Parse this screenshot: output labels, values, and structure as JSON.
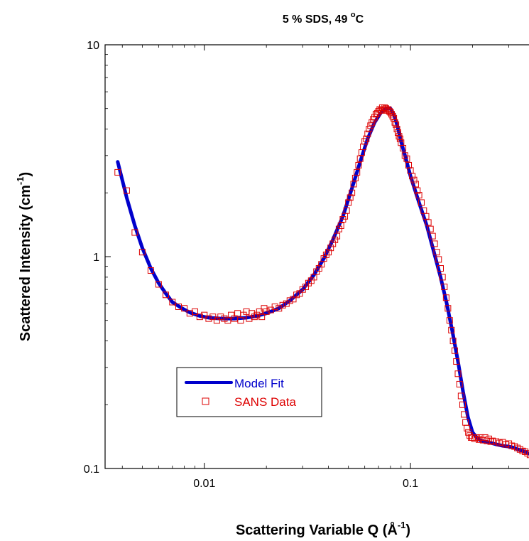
{
  "chart_data": {
    "type": "scatter",
    "title_parts": {
      "main": "5 % SDS, 49 ",
      "sup": "o",
      "tail": "C"
    },
    "xlabel_parts": {
      "main": "Scattering Variable Q (Å",
      "sup": "-1",
      "tail": ")"
    },
    "ylabel_parts": {
      "main": "Scattered Intensity (cm",
      "sup": "-1",
      "tail": ")"
    },
    "x_scale": "log",
    "y_scale": "log",
    "xlim": [
      0.0033,
      0.42
    ],
    "ylim": [
      0.1,
      10
    ],
    "x_ticks": [
      {
        "value": 0.01,
        "label": "0.01"
      },
      {
        "value": 0.1,
        "label": "0.1"
      }
    ],
    "y_ticks": [
      {
        "value": 0.1,
        "label": "0.1"
      },
      {
        "value": 1,
        "label": "1"
      },
      {
        "value": 10,
        "label": "10"
      }
    ],
    "grid": false,
    "legend_position": "lower-left",
    "series": [
      {
        "name": "Model Fit",
        "kind": "line",
        "color": "#0000cc",
        "x": [
          0.0038,
          0.0042,
          0.0046,
          0.005,
          0.0055,
          0.006,
          0.0065,
          0.007,
          0.0078,
          0.0085,
          0.0095,
          0.0105,
          0.012,
          0.014,
          0.016,
          0.018,
          0.02,
          0.023,
          0.026,
          0.03,
          0.034,
          0.038,
          0.042,
          0.047,
          0.052,
          0.057,
          0.062,
          0.067,
          0.072,
          0.076,
          0.08,
          0.083,
          0.086,
          0.09,
          0.095,
          0.1,
          0.11,
          0.12,
          0.13,
          0.14,
          0.15,
          0.16,
          0.17,
          0.18,
          0.19,
          0.2,
          0.21,
          0.22,
          0.24,
          0.26,
          0.28,
          0.3,
          0.32,
          0.34,
          0.36,
          0.38,
          0.4
        ],
        "y": [
          2.8,
          1.9,
          1.4,
          1.1,
          0.88,
          0.75,
          0.67,
          0.61,
          0.57,
          0.545,
          0.525,
          0.515,
          0.51,
          0.51,
          0.515,
          0.525,
          0.54,
          0.57,
          0.62,
          0.7,
          0.82,
          0.98,
          1.2,
          1.55,
          2.1,
          2.8,
          3.6,
          4.3,
          4.8,
          5.0,
          5.0,
          4.7,
          4.2,
          3.5,
          2.9,
          2.4,
          1.8,
          1.4,
          1.05,
          0.8,
          0.6,
          0.44,
          0.32,
          0.23,
          0.175,
          0.148,
          0.14,
          0.135,
          0.133,
          0.13,
          0.128,
          0.127,
          0.125,
          0.122,
          0.12,
          0.117,
          0.114
        ]
      },
      {
        "name": "SANS Data",
        "kind": "scatter",
        "color": "#dd0000",
        "x": [
          0.0038,
          0.0042,
          0.0046,
          0.005,
          0.0055,
          0.006,
          0.0065,
          0.007,
          0.0075,
          0.008,
          0.0085,
          0.009,
          0.0095,
          0.01,
          0.0105,
          0.011,
          0.0115,
          0.012,
          0.0125,
          0.013,
          0.0135,
          0.014,
          0.0145,
          0.015,
          0.0155,
          0.016,
          0.0165,
          0.017,
          0.0175,
          0.018,
          0.0185,
          0.019,
          0.0195,
          0.02,
          0.021,
          0.022,
          0.023,
          0.024,
          0.025,
          0.026,
          0.027,
          0.028,
          0.029,
          0.03,
          0.031,
          0.032,
          0.033,
          0.034,
          0.035,
          0.036,
          0.037,
          0.038,
          0.039,
          0.04,
          0.041,
          0.042,
          0.043,
          0.044,
          0.045,
          0.046,
          0.047,
          0.048,
          0.049,
          0.05,
          0.051,
          0.052,
          0.053,
          0.054,
          0.055,
          0.056,
          0.057,
          0.058,
          0.059,
          0.06,
          0.061,
          0.062,
          0.063,
          0.064,
          0.065,
          0.066,
          0.067,
          0.068,
          0.069,
          0.07,
          0.071,
          0.072,
          0.073,
          0.074,
          0.075,
          0.076,
          0.077,
          0.078,
          0.079,
          0.08,
          0.081,
          0.082,
          0.083,
          0.084,
          0.085,
          0.086,
          0.087,
          0.088,
          0.089,
          0.09,
          0.092,
          0.094,
          0.096,
          0.098,
          0.1,
          0.102,
          0.104,
          0.106,
          0.108,
          0.11,
          0.113,
          0.116,
          0.119,
          0.122,
          0.125,
          0.128,
          0.131,
          0.134,
          0.137,
          0.14,
          0.143,
          0.146,
          0.149,
          0.152,
          0.155,
          0.158,
          0.161,
          0.164,
          0.167,
          0.17,
          0.173,
          0.176,
          0.179,
          0.182,
          0.185,
          0.188,
          0.191,
          0.194,
          0.197,
          0.2,
          0.205,
          0.21,
          0.215,
          0.22,
          0.225,
          0.23,
          0.235,
          0.24,
          0.245,
          0.25,
          0.26,
          0.27,
          0.28,
          0.29,
          0.3,
          0.31,
          0.32,
          0.33,
          0.34,
          0.35,
          0.36,
          0.37,
          0.38,
          0.39,
          0.4
        ],
        "y": [
          2.5,
          2.05,
          1.3,
          1.05,
          0.86,
          0.74,
          0.66,
          0.61,
          0.58,
          0.57,
          0.54,
          0.55,
          0.52,
          0.53,
          0.51,
          0.52,
          0.5,
          0.52,
          0.51,
          0.5,
          0.53,
          0.51,
          0.54,
          0.5,
          0.53,
          0.55,
          0.51,
          0.54,
          0.52,
          0.53,
          0.55,
          0.52,
          0.57,
          0.55,
          0.56,
          0.58,
          0.57,
          0.59,
          0.6,
          0.62,
          0.63,
          0.66,
          0.67,
          0.7,
          0.72,
          0.75,
          0.77,
          0.8,
          0.85,
          0.88,
          0.92,
          0.98,
          1.02,
          1.05,
          1.1,
          1.15,
          1.2,
          1.25,
          1.35,
          1.4,
          1.5,
          1.55,
          1.65,
          1.8,
          1.9,
          2.0,
          2.2,
          2.35,
          2.5,
          2.7,
          2.9,
          3.1,
          3.3,
          3.5,
          3.6,
          3.8,
          4.0,
          4.15,
          4.3,
          4.45,
          4.55,
          4.7,
          4.75,
          4.85,
          4.95,
          4.9,
          5.05,
          4.95,
          5.05,
          5.0,
          4.9,
          4.95,
          4.85,
          4.8,
          4.7,
          4.6,
          4.5,
          4.3,
          4.2,
          4.0,
          3.85,
          3.7,
          3.6,
          3.45,
          3.25,
          3.0,
          2.9,
          2.7,
          2.55,
          2.4,
          2.3,
          2.2,
          2.05,
          1.95,
          1.8,
          1.65,
          1.55,
          1.45,
          1.35,
          1.25,
          1.15,
          1.05,
          0.97,
          0.88,
          0.8,
          0.72,
          0.64,
          0.57,
          0.5,
          0.45,
          0.4,
          0.36,
          0.32,
          0.28,
          0.25,
          0.22,
          0.2,
          0.18,
          0.165,
          0.155,
          0.148,
          0.143,
          0.14,
          0.14,
          0.138,
          0.14,
          0.137,
          0.14,
          0.136,
          0.14,
          0.135,
          0.138,
          0.134,
          0.135,
          0.134,
          0.132,
          0.133,
          0.13,
          0.131,
          0.128,
          0.127,
          0.125,
          0.123,
          0.121,
          0.12,
          0.118,
          0.116,
          0.114,
          0.113
        ]
      }
    ]
  }
}
